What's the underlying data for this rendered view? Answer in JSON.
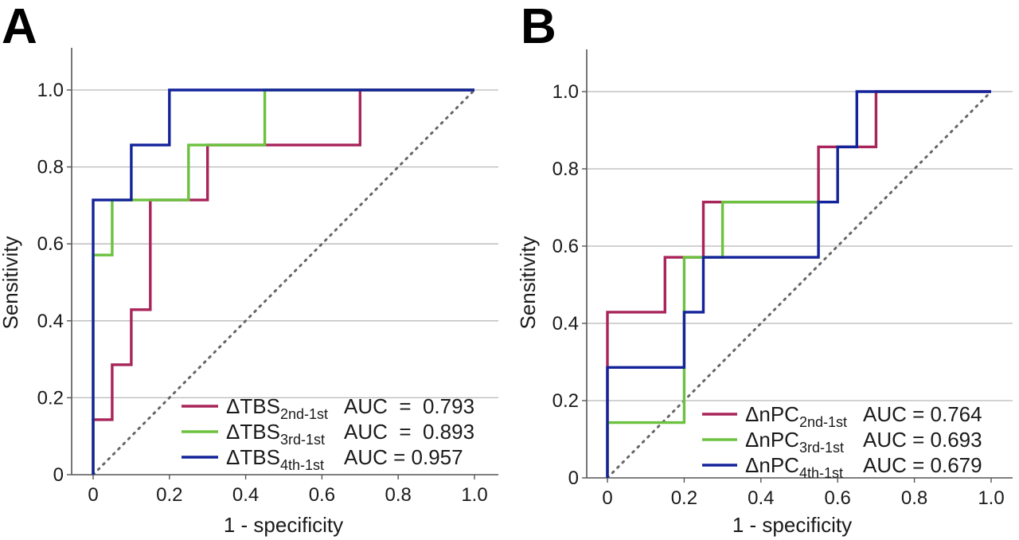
{
  "chart_data": [
    {
      "panel": "A",
      "type": "line",
      "xlabel": "1 - specificity",
      "ylabel": "Sensitivity",
      "xlim": [
        0,
        1.0
      ],
      "ylim": [
        0,
        1.1
      ],
      "x_ticks": [
        "0",
        "0.2",
        "0.4",
        "0.6",
        "0.8",
        "1.0"
      ],
      "y_ticks": [
        "0",
        "0.2",
        "0.4",
        "0.6",
        "0.8",
        "1.0"
      ],
      "grid": "horizontal",
      "legend_position": "bottom-right",
      "reference_line": [
        [
          0,
          0
        ],
        [
          1,
          1
        ]
      ],
      "series": [
        {
          "name_main": "ΔTBS",
          "name_sub": "2nd-1st",
          "auc_text": "AUC  =  0.793",
          "color": "#a8245a",
          "points": [
            [
              0,
              0
            ],
            [
              0,
              0.143
            ],
            [
              0.05,
              0.143
            ],
            [
              0.05,
              0.286
            ],
            [
              0.1,
              0.286
            ],
            [
              0.1,
              0.429
            ],
            [
              0.15,
              0.429
            ],
            [
              0.15,
              0.714
            ],
            [
              0.3,
              0.714
            ],
            [
              0.3,
              0.857
            ],
            [
              0.7,
              0.857
            ],
            [
              0.7,
              1.0
            ],
            [
              1.0,
              1.0
            ]
          ]
        },
        {
          "name_main": "ΔTBS",
          "name_sub": "3rd-1st",
          "auc_text": "AUC  =  0.893",
          "color": "#6cc23f",
          "points": [
            [
              0,
              0
            ],
            [
              0,
              0.571
            ],
            [
              0.05,
              0.571
            ],
            [
              0.05,
              0.714
            ],
            [
              0.25,
              0.714
            ],
            [
              0.25,
              0.857
            ],
            [
              0.45,
              0.857
            ],
            [
              0.45,
              1.0
            ],
            [
              1.0,
              1.0
            ]
          ]
        },
        {
          "name_main": "ΔTBS",
          "name_sub": "4th-1st",
          "auc_text": "AUC = 0.957",
          "color": "#13239a",
          "points": [
            [
              0,
              0
            ],
            [
              0,
              0.714
            ],
            [
              0.1,
              0.714
            ],
            [
              0.1,
              0.857
            ],
            [
              0.2,
              0.857
            ],
            [
              0.2,
              1.0
            ],
            [
              1.0,
              1.0
            ]
          ]
        }
      ]
    },
    {
      "panel": "B",
      "type": "line",
      "xlabel": "1 - specificity",
      "ylabel": "Sensitivity",
      "xlim": [
        0,
        1.0
      ],
      "ylim": [
        0,
        1.1
      ],
      "x_ticks": [
        "0",
        "0.2",
        "0.4",
        "0.6",
        "0.8",
        "1.0"
      ],
      "y_ticks": [
        "0",
        "0.2",
        "0.4",
        "0.6",
        "0.8",
        "1.0"
      ],
      "grid": "horizontal",
      "legend_position": "bottom-right",
      "reference_line": [
        [
          0,
          0
        ],
        [
          1,
          1
        ]
      ],
      "series": [
        {
          "name_main": "ΔnPC",
          "name_sub": "2nd-1st",
          "auc_text": "AUC = 0.764",
          "color": "#a8245a",
          "points": [
            [
              0,
              0
            ],
            [
              0,
              0.429
            ],
            [
              0.15,
              0.429
            ],
            [
              0.15,
              0.571
            ],
            [
              0.25,
              0.571
            ],
            [
              0.25,
              0.714
            ],
            [
              0.55,
              0.714
            ],
            [
              0.55,
              0.857
            ],
            [
              0.65,
              0.857
            ],
            [
              0.7,
              0.857
            ],
            [
              0.7,
              1.0
            ],
            [
              1.0,
              1.0
            ]
          ]
        },
        {
          "name_main": "ΔnPC",
          "name_sub": "3rd-1st",
          "auc_text": "AUC = 0.693",
          "color": "#6cc23f",
          "points": [
            [
              0,
              0
            ],
            [
              0,
              0.143
            ],
            [
              0.2,
              0.143
            ],
            [
              0.2,
              0.571
            ],
            [
              0.3,
              0.571
            ],
            [
              0.3,
              0.714
            ],
            [
              0.55,
              0.714
            ]
          ]
        },
        {
          "name_main": "ΔnPC",
          "name_sub": "4th-1st",
          "auc_text": "AUC = 0.679",
          "color": "#13239a",
          "points": [
            [
              0,
              0
            ],
            [
              0,
              0.286
            ],
            [
              0.2,
              0.286
            ],
            [
              0.2,
              0.429
            ],
            [
              0.25,
              0.429
            ],
            [
              0.25,
              0.571
            ],
            [
              0.55,
              0.571
            ],
            [
              0.55,
              0.714
            ],
            [
              0.6,
              0.714
            ],
            [
              0.6,
              0.857
            ],
            [
              0.65,
              0.857
            ],
            [
              0.65,
              1.0
            ],
            [
              1.0,
              1.0
            ]
          ]
        }
      ]
    }
  ]
}
